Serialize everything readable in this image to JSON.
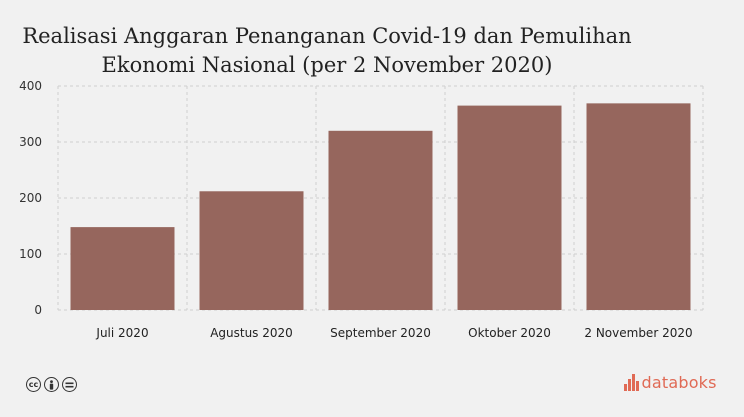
{
  "chart_data": {
    "type": "bar",
    "title_lines": [
      "Realisasi Anggaran Penanganan Covid-19 dan Pemulihan",
      "Ekonomi Nasional (per 2 November 2020)"
    ],
    "categories": [
      "Juli 2020",
      "Agustus 2020",
      "September 2020",
      "Oktober 2020",
      "2 November 2020"
    ],
    "values": [
      148,
      212,
      320,
      365,
      369
    ],
    "ylim": [
      0,
      400
    ],
    "yticks": [
      0,
      100,
      200,
      300,
      400
    ],
    "grid": true,
    "bar_color": "#96665d"
  },
  "footer": {
    "license_icons": [
      "cc-icon",
      "by-icon",
      "nd-icon"
    ],
    "brand": "databoks",
    "brand_color": "#e06a55"
  }
}
